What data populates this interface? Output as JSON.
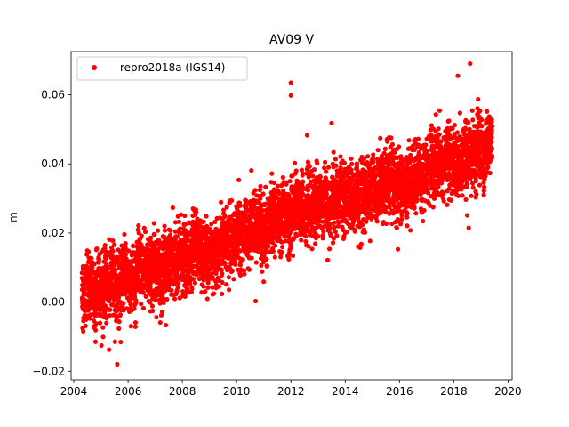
{
  "chart_data": {
    "type": "scatter",
    "title": "AV09 V",
    "xlabel": "",
    "ylabel": "m",
    "xlim": [
      2003.9,
      2020.15
    ],
    "ylim": [
      -0.0225,
      0.0725
    ],
    "xticks": [
      2004,
      2006,
      2008,
      2010,
      2012,
      2014,
      2016,
      2018,
      2020
    ],
    "xtick_labels": [
      "2004",
      "2006",
      "2008",
      "2010",
      "2012",
      "2014",
      "2016",
      "2018",
      "2020"
    ],
    "yticks": [
      -0.02,
      0.0,
      0.02,
      0.04,
      0.06
    ],
    "ytick_labels": [
      "−0.02",
      "0.00",
      "0.02",
      "0.04",
      "0.06"
    ],
    "grid": false,
    "legend_position": "top-left",
    "series": [
      {
        "name": "repro2018a (IGS14)",
        "color": "#ff0000",
        "marker": "filled-circle",
        "x_start": 2004.3,
        "x_end": 2019.42,
        "trend_points": [
          {
            "x": 2004.3,
            "y": 0.003
          },
          {
            "x": 2005.0,
            "y": 0.004
          },
          {
            "x": 2006.0,
            "y": 0.007
          },
          {
            "x": 2007.0,
            "y": 0.01
          },
          {
            "x": 2008.0,
            "y": 0.012
          },
          {
            "x": 2009.0,
            "y": 0.015
          },
          {
            "x": 2010.0,
            "y": 0.018
          },
          {
            "x": 2011.0,
            "y": 0.022
          },
          {
            "x": 2012.0,
            "y": 0.026
          },
          {
            "x": 2013.0,
            "y": 0.028
          },
          {
            "x": 2014.0,
            "y": 0.03
          },
          {
            "x": 2015.0,
            "y": 0.033
          },
          {
            "x": 2016.0,
            "y": 0.034
          },
          {
            "x": 2017.0,
            "y": 0.038
          },
          {
            "x": 2018.0,
            "y": 0.041
          },
          {
            "x": 2019.0,
            "y": 0.044
          },
          {
            "x": 2019.42,
            "y": 0.044
          }
        ],
        "noise_sd": 0.0045,
        "outliers": [
          {
            "x": 2012.0,
            "y": 0.0635
          },
          {
            "x": 2012.0,
            "y": 0.0598
          },
          {
            "x": 2018.6,
            "y": 0.069
          },
          {
            "x": 2018.15,
            "y": 0.0655
          },
          {
            "x": 2013.5,
            "y": 0.0518
          },
          {
            "x": 2012.6,
            "y": 0.0483
          },
          {
            "x": 2005.6,
            "y": -0.018
          },
          {
            "x": 2005.3,
            "y": -0.0138
          },
          {
            "x": 2004.8,
            "y": -0.0115
          },
          {
            "x": 2010.7,
            "y": 0.0003
          },
          {
            "x": 2018.55,
            "y": 0.0215
          },
          {
            "x": 2014.55,
            "y": 0.0158
          }
        ]
      }
    ]
  }
}
